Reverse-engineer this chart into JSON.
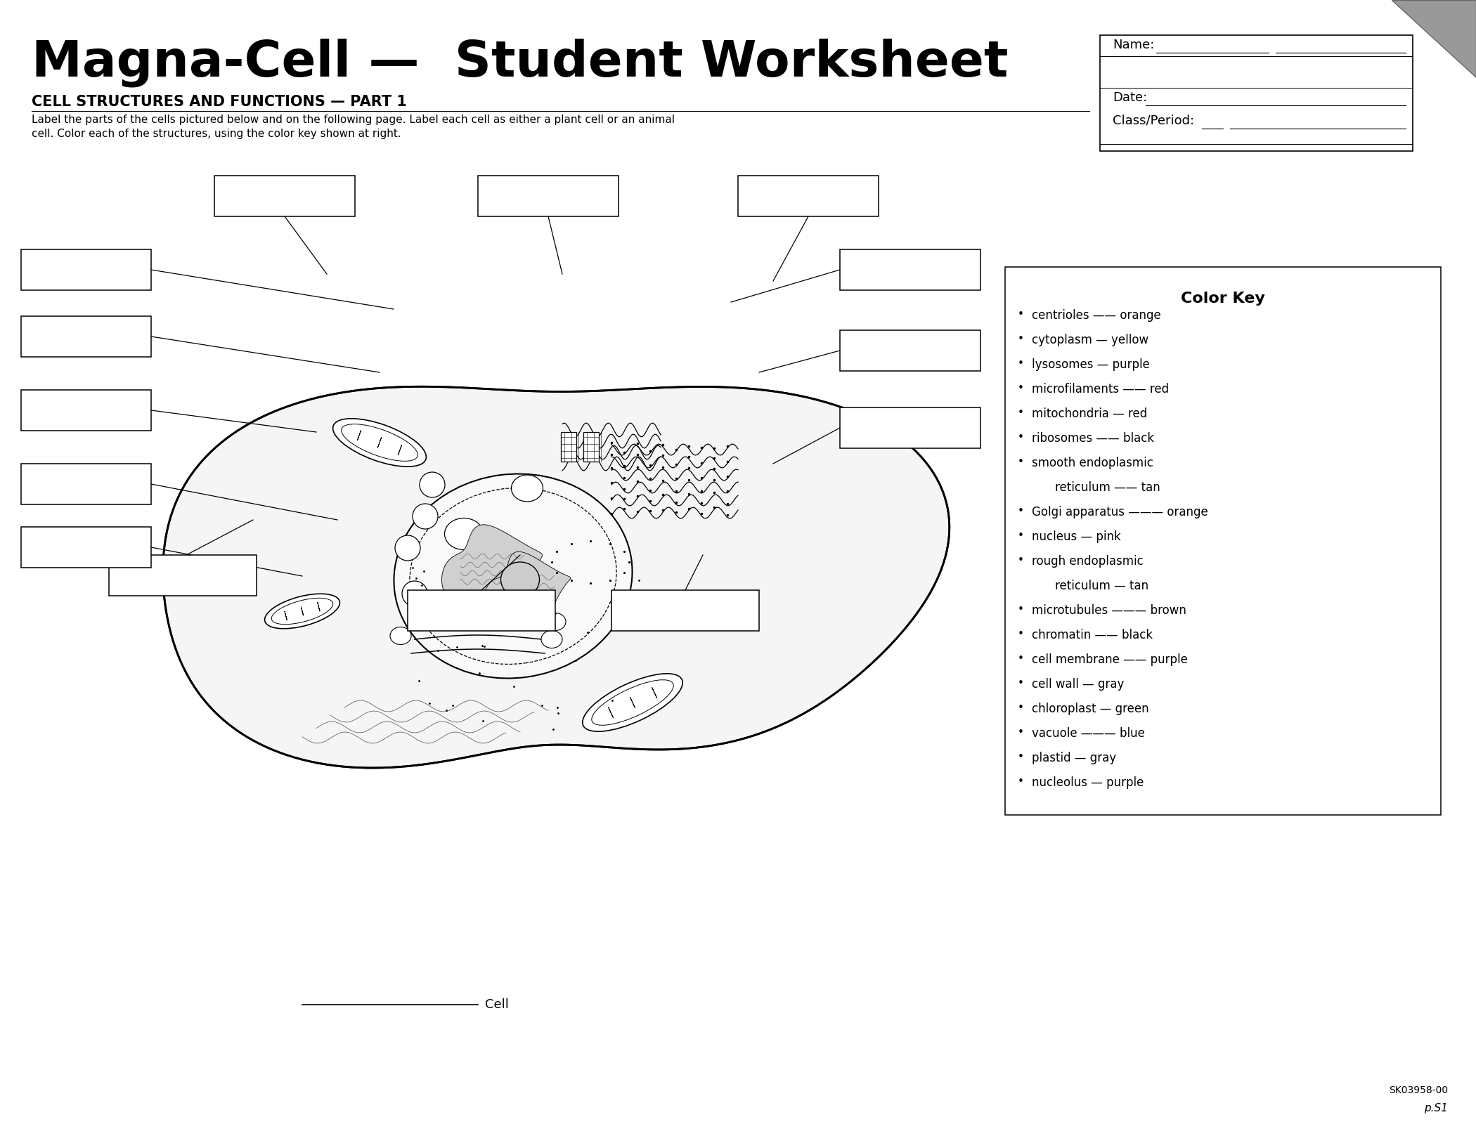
{
  "title": "Magna-Cell —  Student Worksheet",
  "subtitle": "CELL STRUCTURES AND FUNCTIONS — PART 1",
  "instructions_line1": "Label the parts of the cells pictured below and on the following page. Label each cell as either a plant cell or an animal",
  "instructions_line2": "cell. Color each of the structures, using the color key shown at right.",
  "name_label": "Name:",
  "date_label": "Date:",
  "class_label": "Class/Period:",
  "color_key_title": "Color Key",
  "cell_label": "Cell",
  "page_ref": "p.S1",
  "code_ref": "SK03958-00",
  "bg_color": "#ffffff",
  "color_key_items": [
    [
      "centrioles —— orange",
      false
    ],
    [
      "cytoplasm — yellow",
      false
    ],
    [
      "lysosomes — purple",
      false
    ],
    [
      "microfilaments —— red",
      false
    ],
    [
      "mitochondria — red",
      false
    ],
    [
      "ribosomes —— black",
      false
    ],
    [
      "smooth endoplasmic",
      false
    ],
    [
      "    reticulum —— tan",
      true
    ],
    [
      "Golgi apparatus ——— orange",
      false
    ],
    [
      "nucleus — pink",
      false
    ],
    [
      "rough endoplasmic",
      false
    ],
    [
      "    reticulum — tan",
      true
    ],
    [
      "microtubules ——— brown",
      false
    ],
    [
      "chromatin —— black",
      false
    ],
    [
      "cell membrane —— purple",
      false
    ],
    [
      "cell wall — gray",
      false
    ],
    [
      "chloroplast — green",
      false
    ],
    [
      "vacuole ——— blue",
      false
    ],
    [
      "plastid — gray",
      false
    ],
    [
      "nucleolus — purple",
      false
    ]
  ]
}
